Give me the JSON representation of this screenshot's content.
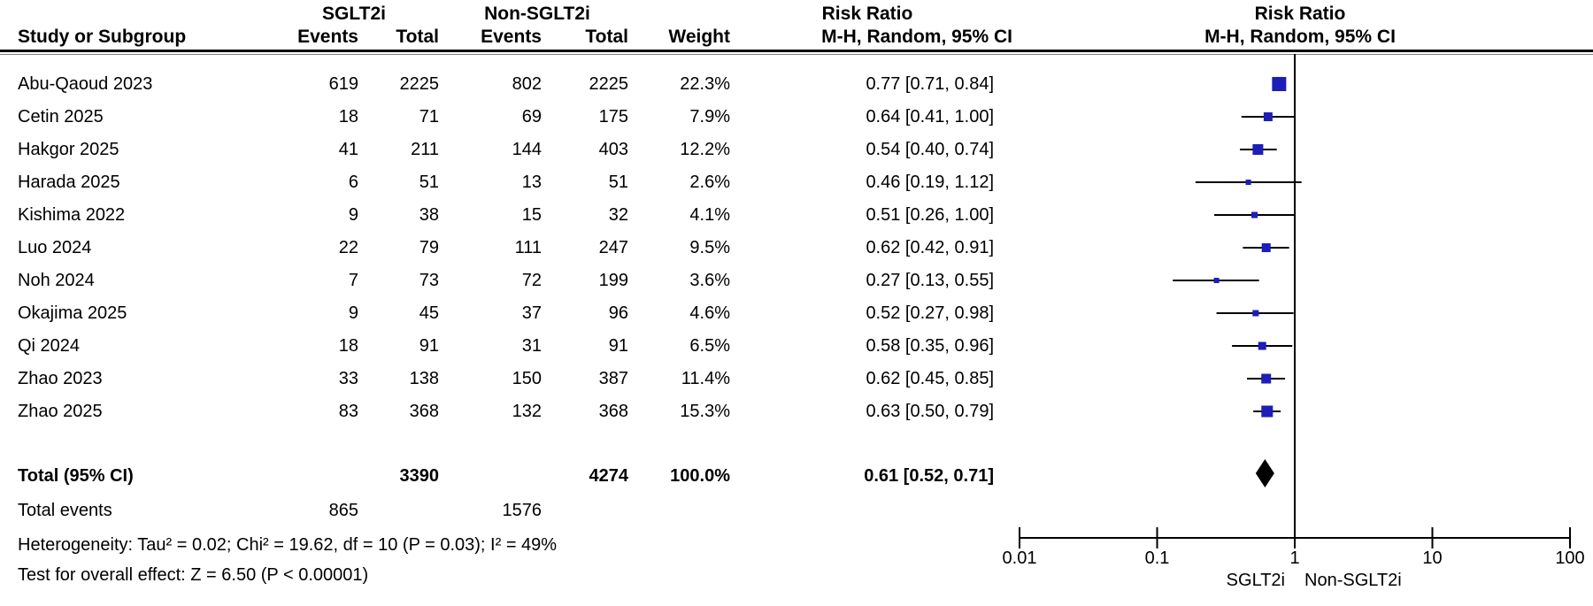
{
  "header": {
    "group1": "SGLT2i",
    "group2": "Non-SGLT2i",
    "risk_ratio_text_col": "Risk Ratio",
    "risk_ratio_plot_col": "Risk Ratio",
    "col_study": "Study or Subgroup",
    "col_events_1": "Events",
    "col_total_1": "Total",
    "col_events_2": "Events",
    "col_total_2": "Total",
    "col_weight": "Weight",
    "col_mh_text": "M-H, Random, 95% CI",
    "col_mh_plot": "M-H, Random, 95% CI"
  },
  "chart_data": {
    "type": "forest",
    "effect_measure": "Risk Ratio",
    "model": "M-H, Random, 95% CI",
    "x_axis": {
      "scale": "log",
      "ticks": [
        "0.01",
        "0.1",
        "1",
        "10",
        "100"
      ],
      "tick_values": [
        0.01,
        0.1,
        1,
        10,
        100
      ],
      "favors_left": "SGLT2i",
      "favors_right": "Non-SGLT2i"
    },
    "studies": [
      {
        "name": "Abu-Qaoud 2023",
        "events1": "619",
        "total1": "2225",
        "events2": "802",
        "total2": "2225",
        "weight": "22.3%",
        "rr_text": "0.77 [0.71, 0.84]",
        "rr": 0.77,
        "lo": 0.71,
        "hi": 0.84,
        "w": 22.3
      },
      {
        "name": "Cetin 2025",
        "events1": "18",
        "total1": "71",
        "events2": "69",
        "total2": "175",
        "weight": "7.9%",
        "rr_text": "0.64 [0.41, 1.00]",
        "rr": 0.64,
        "lo": 0.41,
        "hi": 1.0,
        "w": 7.9
      },
      {
        "name": "Hakgor 2025",
        "events1": "41",
        "total1": "211",
        "events2": "144",
        "total2": "403",
        "weight": "12.2%",
        "rr_text": "0.54 [0.40, 0.74]",
        "rr": 0.54,
        "lo": 0.4,
        "hi": 0.74,
        "w": 12.2
      },
      {
        "name": "Harada 2025",
        "events1": "6",
        "total1": "51",
        "events2": "13",
        "total2": "51",
        "weight": "2.6%",
        "rr_text": "0.46 [0.19, 1.12]",
        "rr": 0.46,
        "lo": 0.19,
        "hi": 1.12,
        "w": 2.6
      },
      {
        "name": "Kishima 2022",
        "events1": "9",
        "total1": "38",
        "events2": "15",
        "total2": "32",
        "weight": "4.1%",
        "rr_text": "0.51 [0.26, 1.00]",
        "rr": 0.51,
        "lo": 0.26,
        "hi": 1.0,
        "w": 4.1
      },
      {
        "name": "Luo 2024",
        "events1": "22",
        "total1": "79",
        "events2": "111",
        "total2": "247",
        "weight": "9.5%",
        "rr_text": "0.62 [0.42, 0.91]",
        "rr": 0.62,
        "lo": 0.42,
        "hi": 0.91,
        "w": 9.5
      },
      {
        "name": "Noh 2024",
        "events1": "7",
        "total1": "73",
        "events2": "72",
        "total2": "199",
        "weight": "3.6%",
        "rr_text": "0.27 [0.13, 0.55]",
        "rr": 0.27,
        "lo": 0.13,
        "hi": 0.55,
        "w": 3.6
      },
      {
        "name": "Okajima 2025",
        "events1": "9",
        "total1": "45",
        "events2": "37",
        "total2": "96",
        "weight": "4.6%",
        "rr_text": "0.52 [0.27, 0.98]",
        "rr": 0.52,
        "lo": 0.27,
        "hi": 0.98,
        "w": 4.6
      },
      {
        "name": "Qi 2024",
        "events1": "18",
        "total1": "91",
        "events2": "31",
        "total2": "91",
        "weight": "6.5%",
        "rr_text": "0.58 [0.35, 0.96]",
        "rr": 0.58,
        "lo": 0.35,
        "hi": 0.96,
        "w": 6.5
      },
      {
        "name": "Zhao 2023",
        "events1": "33",
        "total1": "138",
        "events2": "150",
        "total2": "387",
        "weight": "11.4%",
        "rr_text": "0.62 [0.45, 0.85]",
        "rr": 0.62,
        "lo": 0.45,
        "hi": 0.85,
        "w": 11.4
      },
      {
        "name": "Zhao 2025",
        "events1": "83",
        "total1": "368",
        "events2": "132",
        "total2": "368",
        "weight": "15.3%",
        "rr_text": "0.63 [0.50, 0.79]",
        "rr": 0.63,
        "lo": 0.5,
        "hi": 0.79,
        "w": 15.3
      }
    ],
    "total": {
      "label": "Total (95% CI)",
      "total1": "3390",
      "total2": "4274",
      "weight": "100.0%",
      "rr_text": "0.61 [0.52, 0.71]",
      "rr": 0.61,
      "lo": 0.52,
      "hi": 0.71
    },
    "total_events": {
      "label": "Total events",
      "events1": "865",
      "events2": "1576"
    },
    "heterogeneity": "Heterogeneity: Tau² = 0.02; Chi² = 19.62, df = 10 (P = 0.03); I² = 49%",
    "overall_effect": "Test for overall effect: Z = 6.50 (P < 0.00001)"
  },
  "colors": {
    "marker_square": "#1d1db8",
    "ci_line": "#000000",
    "diamond": "#000000",
    "axis": "#000000"
  }
}
